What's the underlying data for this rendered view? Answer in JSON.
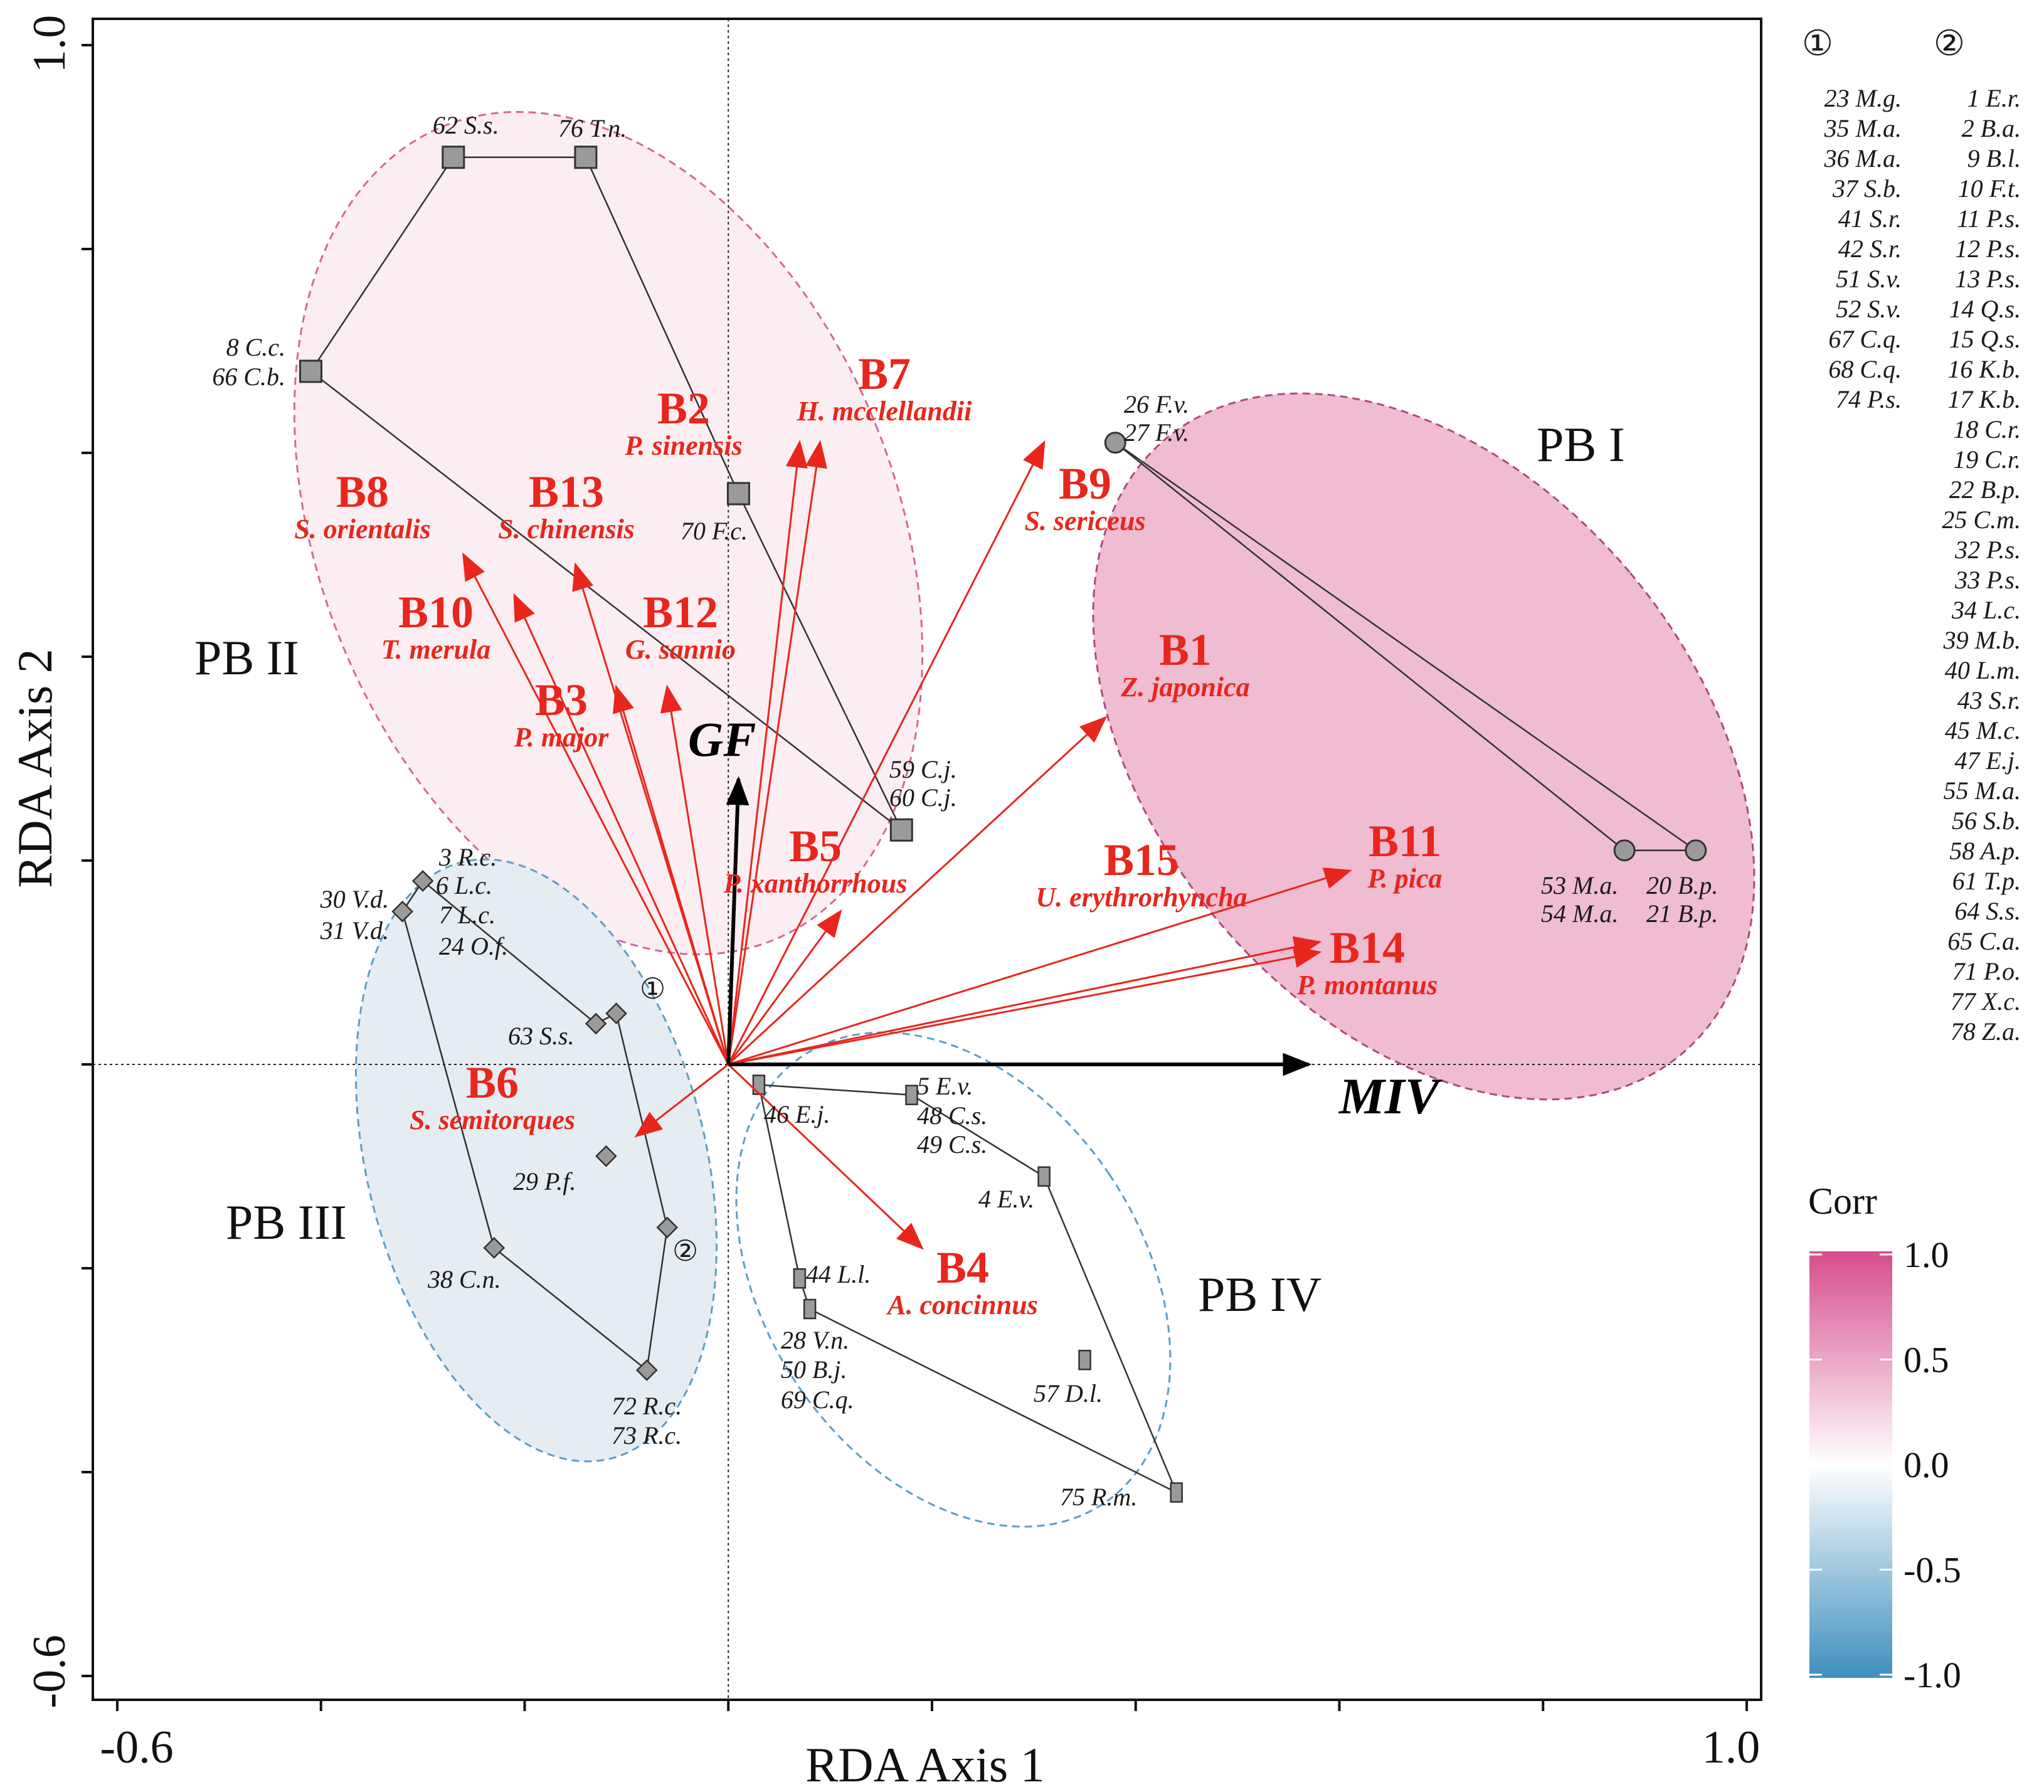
{
  "chart_data": {
    "type": "scatter",
    "subtype": "RDA biplot",
    "xlabel": "RDA Axis 1",
    "ylabel": "RDA Axis 2",
    "xlim": [
      -0.6,
      1.0
    ],
    "ylim": [
      -0.6,
      1.0
    ],
    "x_tick_labels": [
      "-0.6",
      "1.0"
    ],
    "y_tick_labels": [
      "-0.6",
      "1.0"
    ],
    "x_ticks": [
      -0.6,
      -0.4,
      -0.2,
      0.0,
      0.2,
      0.4,
      0.6,
      0.8,
      1.0
    ],
    "y_ticks": [
      -0.6,
      -0.4,
      -0.2,
      0.0,
      0.2,
      0.4,
      0.6,
      0.8,
      1.0
    ],
    "env_vectors": [
      {
        "name": "GF",
        "x": 0.01,
        "y": 0.28
      },
      {
        "name": "MIV",
        "x": 0.57,
        "y": 0.0
      }
    ],
    "species_vectors": [
      {
        "code": "B1",
        "species": "Z. japonica",
        "x": 0.37,
        "y": 0.34
      },
      {
        "code": "B2",
        "species": "P. sinensis",
        "x": 0.07,
        "y": 0.61
      },
      {
        "code": "B3",
        "species": "P. major",
        "x": -0.11,
        "y": 0.37
      },
      {
        "code": "B4",
        "species": "A. concinnus",
        "x": 0.19,
        "y": -0.18
      },
      {
        "code": "B5",
        "species": "P. xanthorrhous",
        "x": 0.11,
        "y": 0.15
      },
      {
        "code": "B6",
        "species": "S. semitorques",
        "x": -0.09,
        "y": -0.07
      },
      {
        "code": "B7",
        "species": "H. mcclellandii",
        "x": 0.09,
        "y": 0.61
      },
      {
        "code": "B8",
        "species": "S. orientalis",
        "x": -0.26,
        "y": 0.5
      },
      {
        "code": "B9",
        "species": "S. sericeus",
        "x": 0.31,
        "y": 0.61
      },
      {
        "code": "B10",
        "species": "T. merula",
        "x": -0.21,
        "y": 0.46
      },
      {
        "code": "B11",
        "species": "P. pica",
        "x": 0.61,
        "y": 0.19
      },
      {
        "code": "B12",
        "species": "G. sannio",
        "x": -0.06,
        "y": 0.37
      },
      {
        "code": "B13",
        "species": "S. chinensis",
        "x": -0.15,
        "y": 0.49
      },
      {
        "code": "B14",
        "species": "P. montanus",
        "x": 0.58,
        "y": 0.12
      },
      {
        "code": "B15",
        "species": "U. erythrorhyncha",
        "x": 0.58,
        "y": 0.11
      }
    ],
    "groups": [
      {
        "name": "PB I",
        "marker": "circle",
        "corr": 0.6,
        "points": [
          {
            "label": "26 F.v.",
            "x": 0.38,
            "y": 0.61
          },
          {
            "label": "27 F.v.",
            "x": 0.38,
            "y": 0.61
          },
          {
            "label": "53 M.a.",
            "x": 0.88,
            "y": 0.21
          },
          {
            "label": "54 M.a.",
            "x": 0.88,
            "y": 0.21
          },
          {
            "label": "20 B.p.",
            "x": 0.95,
            "y": 0.21
          },
          {
            "label": "21 B.p.",
            "x": 0.95,
            "y": 0.21
          }
        ],
        "hull": [
          [
            0.38,
            0.61
          ],
          [
            0.95,
            0.21
          ],
          [
            0.88,
            0.21
          ],
          [
            0.38,
            0.61
          ]
        ]
      },
      {
        "name": "PB II",
        "marker": "square",
        "corr": 0.1,
        "points": [
          {
            "label": "62 S.s.",
            "x": -0.27,
            "y": 0.89
          },
          {
            "label": "76 T.n.",
            "x": -0.14,
            "y": 0.89
          },
          {
            "label": "8 C.c.",
            "x": -0.41,
            "y": 0.68
          },
          {
            "label": "66 C.b.",
            "x": -0.41,
            "y": 0.68
          },
          {
            "label": "70 F.c.",
            "x": 0.01,
            "y": 0.56
          },
          {
            "label": "59 C.j.",
            "x": 0.17,
            "y": 0.23
          },
          {
            "label": "60 C.j.",
            "x": 0.17,
            "y": 0.23
          }
        ],
        "hull": [
          [
            -0.41,
            0.68
          ],
          [
            -0.27,
            0.89
          ],
          [
            -0.14,
            0.89
          ],
          [
            0.01,
            0.56
          ],
          [
            0.17,
            0.23
          ],
          [
            -0.41,
            0.68
          ]
        ]
      },
      {
        "name": "PB III",
        "marker": "diamond",
        "corr": -0.1,
        "points": [
          {
            "label": "3 R.c.",
            "x": -0.3,
            "y": 0.18
          },
          {
            "label": "6 L.c.",
            "x": -0.3,
            "y": 0.18
          },
          {
            "label": "7 L.c.",
            "x": -0.32,
            "y": 0.15
          },
          {
            "label": "30 V.d.",
            "x": -0.32,
            "y": 0.15
          },
          {
            "label": "31 V.d.",
            "x": -0.32,
            "y": 0.15
          },
          {
            "label": "24 O.f.",
            "x": -0.32,
            "y": 0.15
          },
          {
            "label": "63 S.s.",
            "x": -0.13,
            "y": 0.04
          },
          {
            "label": "①",
            "x": -0.11,
            "y": 0.05
          },
          {
            "label": "29 P.f.",
            "x": -0.12,
            "y": -0.09
          },
          {
            "label": "②",
            "x": -0.06,
            "y": -0.16
          },
          {
            "label": "38 C.n.",
            "x": -0.23,
            "y": -0.18
          },
          {
            "label": "72 R.c.",
            "x": -0.08,
            "y": -0.3
          },
          {
            "label": "73 R.c.",
            "x": -0.08,
            "y": -0.3
          }
        ],
        "hull": [
          [
            -0.3,
            0.18
          ],
          [
            -0.32,
            0.15
          ],
          [
            -0.23,
            -0.18
          ],
          [
            -0.08,
            -0.3
          ],
          [
            -0.06,
            -0.16
          ],
          [
            -0.11,
            0.05
          ],
          [
            -0.13,
            0.04
          ],
          [
            -0.3,
            0.18
          ]
        ]
      },
      {
        "name": "PB IV",
        "marker": "rect",
        "corr": 0.0,
        "points": [
          {
            "label": "5 E.v.",
            "x": 0.18,
            "y": -0.03
          },
          {
            "label": "46 E.j.",
            "x": 0.03,
            "y": -0.02
          },
          {
            "label": "48 C.s.",
            "x": 0.18,
            "y": -0.03
          },
          {
            "label": "49 C.s.",
            "x": 0.18,
            "y": -0.03
          },
          {
            "label": "4 E.v.",
            "x": 0.31,
            "y": -0.11
          },
          {
            "label": "44 L.l.",
            "x": 0.07,
            "y": -0.21
          },
          {
            "label": "28 V.n.",
            "x": 0.08,
            "y": -0.24
          },
          {
            "label": "50 B.j.",
            "x": 0.08,
            "y": -0.24
          },
          {
            "label": "69 C.q.",
            "x": 0.08,
            "y": -0.24
          },
          {
            "label": "57 D.l.",
            "x": 0.35,
            "y": -0.29
          },
          {
            "label": "75 R.m.",
            "x": 0.44,
            "y": -0.42
          }
        ],
        "hull": [
          [
            0.03,
            -0.02
          ],
          [
            0.18,
            -0.03
          ],
          [
            0.31,
            -0.11
          ],
          [
            0.44,
            -0.42
          ],
          [
            0.08,
            -0.24
          ],
          [
            0.07,
            -0.21
          ],
          [
            0.03,
            -0.02
          ]
        ]
      }
    ],
    "legend_group1": {
      "symbol": "①",
      "items": [
        "23 M.g.",
        "35 M.a.",
        "36 M.a.",
        "37 S.b.",
        "41 S.r.",
        "42 S.r.",
        "51 S.v.",
        "52 S.v.",
        "67 C.q.",
        "68 C.q.",
        "74 P.s."
      ]
    },
    "legend_group2": {
      "symbol": "②",
      "items": [
        "1 E.r.",
        "2 B.a.",
        "9 B.l.",
        "10 F.t.",
        "11 P.s.",
        "12 P.s.",
        "13 P.s.",
        "14 Q.s.",
        "15 Q.s.",
        "16 K.b.",
        "17 K.b.",
        "18 C.r.",
        "19 C.r.",
        "22 B.p.",
        "25 C.m.",
        "32 P.s.",
        "33 P.s.",
        "34 L.c.",
        "39 M.b.",
        "40 L.m.",
        "43 S.r.",
        "45 M.c.",
        "47 E.j.",
        "55 M.a.",
        "56 S.b.",
        "58 A.p.",
        "61 T.p.",
        "64 S.s.",
        "65 C.a.",
        "71 P.o.",
        "77 X.c.",
        "78 Z.a."
      ]
    },
    "colorbar": {
      "title": "Corr",
      "range": [
        -1.0,
        1.0
      ],
      "ticks": [
        "1.0",
        "0.5",
        "0.0",
        "-0.5",
        "-1.0"
      ],
      "colors": {
        "high": "#d64d8c",
        "mid": "#ffffff",
        "low": "#3f8fbd"
      }
    },
    "colors": {
      "species_arrow": "#e8261c",
      "env_arrow": "#000000",
      "point_fill": "#9a9a9a"
    }
  }
}
